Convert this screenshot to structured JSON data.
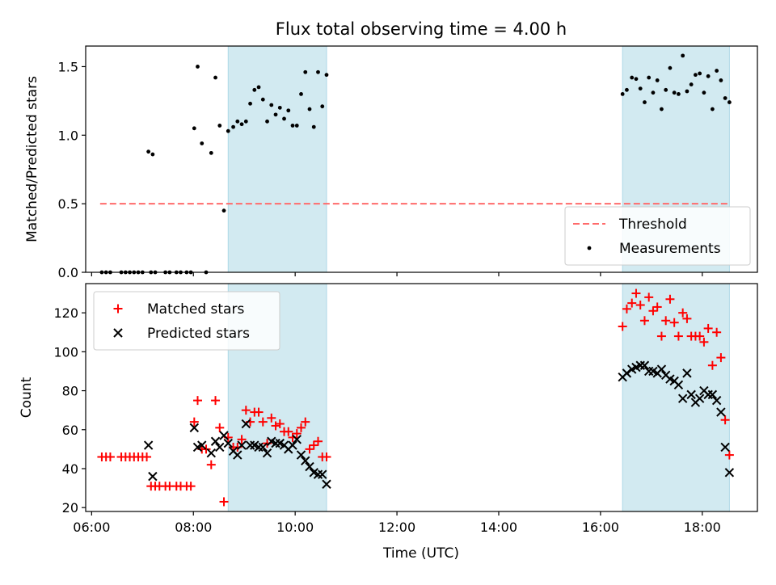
{
  "chart_data": {
    "type": "scatter",
    "title": "Flux total observing time = 4.00 h",
    "xlabel": "Time (UTC)",
    "x_ticks": [
      "06:00",
      "08:00",
      "10:00",
      "12:00",
      "14:00",
      "16:00",
      "18:00"
    ],
    "x_range": [
      "05:53",
      "19:05"
    ],
    "shaded_intervals": [
      {
        "start": "08:41",
        "end": "10:37"
      },
      {
        "start": "16:26",
        "end": "18:32"
      }
    ],
    "colors": {
      "shade": "#add8e6",
      "threshold": "#ff6b6b",
      "measurements": "#000000",
      "matched": "#ff0000",
      "predicted": "#000000"
    },
    "panels": [
      {
        "id": "ratio",
        "ylabel": "Matched/Predicted stars",
        "ylim": [
          0,
          1.65
        ],
        "y_ticks": [
          "0.0",
          "0.5",
          "1.0",
          "1.5"
        ],
        "y_tick_values": [
          0,
          0.5,
          1.0,
          1.5
        ],
        "legend_position": "lower-right",
        "threshold": {
          "name": "Threshold",
          "value": 0.5,
          "x_start": "06:10",
          "x_end": "18:32"
        },
        "series": [
          {
            "name": "Measurements",
            "marker": "dot",
            "points": [
              [
                "06:12",
                0.0
              ],
              [
                "06:17",
                0.0
              ],
              [
                "06:22",
                0.0
              ],
              [
                "06:35",
                0.0
              ],
              [
                "06:40",
                0.0
              ],
              [
                "06:45",
                0.0
              ],
              [
                "06:50",
                0.0
              ],
              [
                "06:55",
                0.0
              ],
              [
                "07:00",
                0.0
              ],
              [
                "07:10",
                0.0
              ],
              [
                "07:15",
                0.0
              ],
              [
                "07:27",
                0.0
              ],
              [
                "07:32",
                0.0
              ],
              [
                "07:40",
                0.0
              ],
              [
                "07:45",
                0.0
              ],
              [
                "07:52",
                0.0
              ],
              [
                "07:57",
                0.0
              ],
              [
                "08:15",
                0.0
              ],
              [
                "07:07",
                0.88
              ],
              [
                "07:12",
                0.86
              ],
              [
                "08:01",
                1.05
              ],
              [
                "08:05",
                1.5
              ],
              [
                "08:10",
                0.94
              ],
              [
                "08:21",
                0.87
              ],
              [
                "08:26",
                1.42
              ],
              [
                "08:31",
                1.07
              ],
              [
                "08:36",
                0.45
              ],
              [
                "08:41",
                1.03
              ],
              [
                "08:47",
                1.06
              ],
              [
                "08:52",
                1.1
              ],
              [
                "08:57",
                1.08
              ],
              [
                "09:02",
                1.1
              ],
              [
                "09:07",
                1.23
              ],
              [
                "09:12",
                1.33
              ],
              [
                "09:17",
                1.35
              ],
              [
                "09:22",
                1.26
              ],
              [
                "09:27",
                1.1
              ],
              [
                "09:32",
                1.22
              ],
              [
                "09:37",
                1.15
              ],
              [
                "09:42",
                1.2
              ],
              [
                "09:47",
                1.12
              ],
              [
                "09:52",
                1.18
              ],
              [
                "09:57",
                1.07
              ],
              [
                "10:02",
                1.07
              ],
              [
                "10:07",
                1.3
              ],
              [
                "10:12",
                1.46
              ],
              [
                "10:17",
                1.19
              ],
              [
                "10:22",
                1.06
              ],
              [
                "10:27",
                1.46
              ],
              [
                "10:32",
                1.21
              ],
              [
                "10:37",
                1.44
              ],
              [
                "16:26",
                1.3
              ],
              [
                "16:31",
                1.33
              ],
              [
                "16:37",
                1.42
              ],
              [
                "16:42",
                1.41
              ],
              [
                "16:47",
                1.34
              ],
              [
                "16:52",
                1.24
              ],
              [
                "16:57",
                1.42
              ],
              [
                "17:02",
                1.31
              ],
              [
                "17:07",
                1.4
              ],
              [
                "17:12",
                1.19
              ],
              [
                "17:17",
                1.33
              ],
              [
                "17:22",
                1.49
              ],
              [
                "17:27",
                1.31
              ],
              [
                "17:32",
                1.3
              ],
              [
                "17:37",
                1.58
              ],
              [
                "17:42",
                1.32
              ],
              [
                "17:47",
                1.37
              ],
              [
                "17:52",
                1.44
              ],
              [
                "17:57",
                1.45
              ],
              [
                "18:02",
                1.31
              ],
              [
                "18:07",
                1.43
              ],
              [
                "18:12",
                1.19
              ],
              [
                "18:17",
                1.47
              ],
              [
                "18:22",
                1.4
              ],
              [
                "18:27",
                1.27
              ],
              [
                "18:32",
                1.24
              ]
            ]
          }
        ]
      },
      {
        "id": "counts",
        "ylabel": "Count",
        "ylim": [
          18,
          135
        ],
        "y_ticks": [
          "20",
          "40",
          "60",
          "80",
          "100",
          "120"
        ],
        "y_tick_values": [
          20,
          40,
          60,
          80,
          100,
          120
        ],
        "legend_position": "upper-left",
        "series": [
          {
            "name": "Matched stars",
            "marker": "plus",
            "points": [
              [
                "06:12",
                46
              ],
              [
                "06:17",
                46
              ],
              [
                "06:22",
                46
              ],
              [
                "06:35",
                46
              ],
              [
                "06:40",
                46
              ],
              [
                "06:45",
                46
              ],
              [
                "06:50",
                46
              ],
              [
                "06:55",
                46
              ],
              [
                "07:00",
                46
              ],
              [
                "07:05",
                46
              ],
              [
                "07:10",
                31
              ],
              [
                "07:15",
                31
              ],
              [
                "07:20",
                31
              ],
              [
                "07:27",
                31
              ],
              [
                "07:32",
                31
              ],
              [
                "07:40",
                31
              ],
              [
                "07:45",
                31
              ],
              [
                "07:52",
                31
              ],
              [
                "07:57",
                31
              ],
              [
                "08:01",
                64
              ],
              [
                "08:05",
                75
              ],
              [
                "08:10",
                50
              ],
              [
                "08:15",
                50
              ],
              [
                "08:21",
                42
              ],
              [
                "08:26",
                75
              ],
              [
                "08:31",
                61
              ],
              [
                "08:36",
                23
              ],
              [
                "08:41",
                56
              ],
              [
                "08:47",
                51
              ],
              [
                "08:52",
                51
              ],
              [
                "08:57",
                55
              ],
              [
                "09:02",
                70
              ],
              [
                "09:07",
                64
              ],
              [
                "09:12",
                69
              ],
              [
                "09:17",
                69
              ],
              [
                "09:22",
                64
              ],
              [
                "09:27",
                53
              ],
              [
                "09:32",
                66
              ],
              [
                "09:37",
                62
              ],
              [
                "09:42",
                63
              ],
              [
                "09:47",
                59
              ],
              [
                "09:52",
                59
              ],
              [
                "09:57",
                56
              ],
              [
                "10:02",
                58
              ],
              [
                "10:07",
                61
              ],
              [
                "10:12",
                64
              ],
              [
                "10:17",
                50
              ],
              [
                "10:22",
                52
              ],
              [
                "10:27",
                54
              ],
              [
                "10:32",
                46
              ],
              [
                "10:37",
                46
              ],
              [
                "16:26",
                113
              ],
              [
                "16:31",
                122
              ],
              [
                "16:37",
                125
              ],
              [
                "16:42",
                130
              ],
              [
                "16:47",
                124
              ],
              [
                "16:52",
                116
              ],
              [
                "16:57",
                128
              ],
              [
                "17:02",
                121
              ],
              [
                "17:07",
                123
              ],
              [
                "17:12",
                108
              ],
              [
                "17:17",
                116
              ],
              [
                "17:22",
                127
              ],
              [
                "17:27",
                115
              ],
              [
                "17:32",
                108
              ],
              [
                "17:37",
                120
              ],
              [
                "17:42",
                117
              ],
              [
                "17:47",
                108
              ],
              [
                "17:52",
                108
              ],
              [
                "17:57",
                108
              ],
              [
                "18:02",
                105
              ],
              [
                "18:07",
                112
              ],
              [
                "18:12",
                93
              ],
              [
                "18:17",
                110
              ],
              [
                "18:22",
                97
              ],
              [
                "18:27",
                65
              ],
              [
                "18:32",
                47
              ]
            ]
          },
          {
            "name": "Predicted stars",
            "marker": "x",
            "points": [
              [
                "07:07",
                52
              ],
              [
                "07:12",
                36
              ],
              [
                "08:01",
                61
              ],
              [
                "08:05",
                51
              ],
              [
                "08:10",
                52
              ],
              [
                "08:21",
                48
              ],
              [
                "08:26",
                54
              ],
              [
                "08:31",
                51
              ],
              [
                "08:36",
                57
              ],
              [
                "08:41",
                53
              ],
              [
                "08:47",
                49
              ],
              [
                "08:52",
                47
              ],
              [
                "08:57",
                52
              ],
              [
                "09:02",
                63
              ],
              [
                "09:07",
                52
              ],
              [
                "09:12",
                52
              ],
              [
                "09:17",
                51
              ],
              [
                "09:22",
                51
              ],
              [
                "09:27",
                48
              ],
              [
                "09:32",
                54
              ],
              [
                "09:37",
                53
              ],
              [
                "09:42",
                53
              ],
              [
                "09:47",
                52
              ],
              [
                "09:52",
                50
              ],
              [
                "09:57",
                52
              ],
              [
                "10:02",
                55
              ],
              [
                "10:07",
                47
              ],
              [
                "10:12",
                44
              ],
              [
                "10:17",
                41
              ],
              [
                "10:22",
                38
              ],
              [
                "10:27",
                37
              ],
              [
                "10:32",
                37
              ],
              [
                "10:37",
                32
              ],
              [
                "16:26",
                87
              ],
              [
                "16:31",
                89
              ],
              [
                "16:37",
                91
              ],
              [
                "16:42",
                92
              ],
              [
                "16:47",
                93
              ],
              [
                "16:52",
                93
              ],
              [
                "16:57",
                90
              ],
              [
                "17:02",
                90
              ],
              [
                "17:07",
                89
              ],
              [
                "17:12",
                91
              ],
              [
                "17:17",
                88
              ],
              [
                "17:22",
                86
              ],
              [
                "17:27",
                85
              ],
              [
                "17:32",
                83
              ],
              [
                "17:37",
                76
              ],
              [
                "17:42",
                89
              ],
              [
                "17:47",
                78
              ],
              [
                "17:52",
                74
              ],
              [
                "17:57",
                76
              ],
              [
                "18:02",
                80
              ],
              [
                "18:07",
                78
              ],
              [
                "18:12",
                78
              ],
              [
                "18:17",
                75
              ],
              [
                "18:22",
                69
              ],
              [
                "18:27",
                51
              ],
              [
                "18:32",
                38
              ]
            ]
          }
        ]
      }
    ]
  }
}
